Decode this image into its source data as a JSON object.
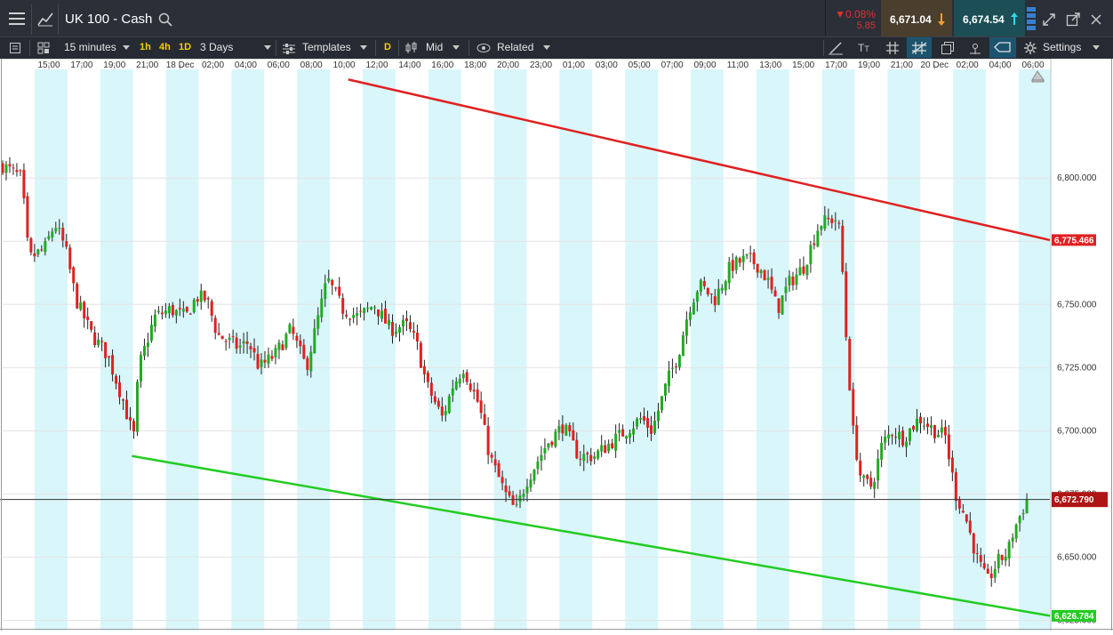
{
  "header": {
    "title": "UK 100 - Cash",
    "change_pct": "▼0.08%",
    "change_abs": "5.85",
    "sell_price": "6,671.04",
    "buy_price": "6,674.54"
  },
  "toolbar": {
    "interval": "15 minutes",
    "quick_intervals": [
      "1h",
      "4h",
      "1D"
    ],
    "range": "3 Days",
    "templates_label": "Templates",
    "d_label": "D",
    "price_type": "Mid",
    "related_label": "Related",
    "settings_label": "Settings"
  },
  "colors": {
    "bull": "#22aa22",
    "bear": "#e02020",
    "upper_trend": "#e02020",
    "lower_trend": "#22cc22",
    "session_band": "#d9f6fa",
    "current_price_tag": "#b01515"
  },
  "chart_data": {
    "type": "candlestick",
    "symbol": "UK 100 - Cash",
    "interval": "15 minutes",
    "ylim": [
      6622,
      6843
    ],
    "y_ticks": [
      "6,625.000",
      "6,650.000",
      "6,675.000",
      "6,700.000",
      "6,725.000",
      "6,750.000",
      "6,775.000",
      "6,800.000"
    ],
    "x_tick_labels": [
      "15:00",
      "17:00",
      "19:00",
      "21:00",
      "18 Dec",
      "02:00",
      "04:00",
      "06:00",
      "08:00",
      "10:00",
      "12:00",
      "14:00",
      "16:00",
      "18:00",
      "20:00",
      "23:00",
      "01:00",
      "03:00",
      "05:00",
      "07:00",
      "09:00",
      "11:00",
      "13:00",
      "15:00",
      "17:00",
      "19:00",
      "21:00",
      "20 Dec",
      "02:00",
      "04:00",
      "06:00"
    ],
    "current_price": 6672.79,
    "current_price_label": "6,672.790",
    "upper_trendline_value": "6,775.466",
    "lower_trendline_value": "6,626.784",
    "upper_trendline": [
      [
        0.33,
        6839
      ],
      [
        1.0,
        6775.466
      ]
    ],
    "lower_trendline": [
      [
        0.1235,
        6690
      ],
      [
        1.0,
        6626.784
      ]
    ],
    "close_path": [
      [
        0,
        6805
      ],
      [
        0.018,
        6800
      ],
      [
        0.025,
        6768
      ],
      [
        0.04,
        6772
      ],
      [
        0.05,
        6782
      ],
      [
        0.06,
        6772
      ],
      [
        0.07,
        6752
      ],
      [
        0.085,
        6738
      ],
      [
        0.1,
        6730
      ],
      [
        0.115,
        6712
      ],
      [
        0.125,
        6697
      ],
      [
        0.13,
        6725
      ],
      [
        0.145,
        6745
      ],
      [
        0.16,
        6748
      ],
      [
        0.175,
        6745
      ],
      [
        0.185,
        6753
      ],
      [
        0.195,
        6752
      ],
      [
        0.205,
        6738
      ],
      [
        0.225,
        6733
      ],
      [
        0.235,
        6735
      ],
      [
        0.245,
        6725
      ],
      [
        0.26,
        6730
      ],
      [
        0.275,
        6740
      ],
      [
        0.29,
        6725
      ],
      [
        0.31,
        6760
      ],
      [
        0.325,
        6748
      ],
      [
        0.34,
        6745
      ],
      [
        0.355,
        6750
      ],
      [
        0.37,
        6740
      ],
      [
        0.385,
        6742
      ],
      [
        0.395,
        6735
      ],
      [
        0.405,
        6718
      ],
      [
        0.42,
        6705
      ],
      [
        0.43,
        6718
      ],
      [
        0.44,
        6725
      ],
      [
        0.455,
        6710
      ],
      [
        0.465,
        6690
      ],
      [
        0.48,
        6675
      ],
      [
        0.49,
        6668
      ],
      [
        0.5,
        6680
      ],
      [
        0.52,
        6695
      ],
      [
        0.535,
        6702
      ],
      [
        0.55,
        6690
      ],
      [
        0.565,
        6690
      ],
      [
        0.58,
        6695
      ],
      [
        0.595,
        6700
      ],
      [
        0.61,
        6705
      ],
      [
        0.62,
        6700
      ],
      [
        0.635,
        6720
      ],
      [
        0.645,
        6730
      ],
      [
        0.655,
        6748
      ],
      [
        0.665,
        6758
      ],
      [
        0.68,
        6752
      ],
      [
        0.695,
        6765
      ],
      [
        0.71,
        6768
      ],
      [
        0.72,
        6766
      ],
      [
        0.73,
        6760
      ],
      [
        0.74,
        6748
      ],
      [
        0.75,
        6758
      ],
      [
        0.765,
        6765
      ],
      [
        0.78,
        6782
      ],
      [
        0.795,
        6784
      ],
      [
        0.8,
        6778
      ],
      [
        0.805,
        6740
      ],
      [
        0.812,
        6700
      ],
      [
        0.82,
        6680
      ],
      [
        0.83,
        6678
      ],
      [
        0.84,
        6695
      ],
      [
        0.85,
        6700
      ],
      [
        0.86,
        6697
      ],
      [
        0.875,
        6705
      ],
      [
        0.89,
        6700
      ],
      [
        0.9,
        6698
      ],
      [
        0.91,
        6675
      ],
      [
        0.92,
        6665
      ],
      [
        0.93,
        6650
      ],
      [
        0.94,
        6640
      ],
      [
        0.95,
        6648
      ],
      [
        0.96,
        6652
      ],
      [
        0.965,
        6660
      ],
      [
        0.97,
        6665
      ],
      [
        0.978,
        6672.79
      ]
    ]
  }
}
